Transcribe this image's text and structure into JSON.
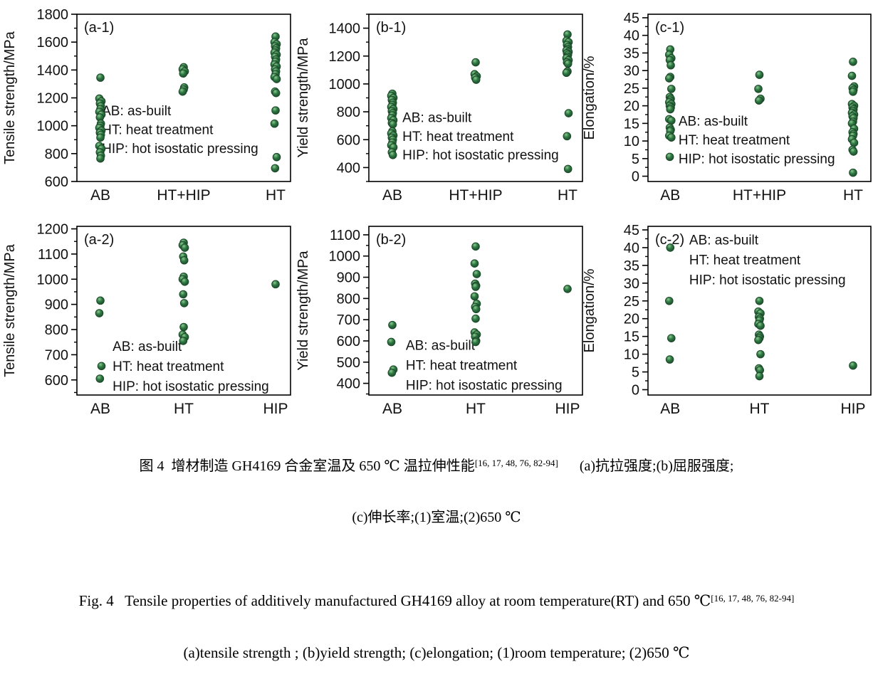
{
  "page": {
    "background": "#ffffff"
  },
  "marker": {
    "fill": "#2f7a44",
    "edge": "#1c492a",
    "highlight": "#8cc98f",
    "radius": 5.3
  },
  "axis": {
    "color": "#000000",
    "text_color": "#111111"
  },
  "chart_data": [
    {
      "id": "a-1",
      "type": "scatter",
      "panel_label": "(a-1)",
      "ylabel": "Tensile strength/MPa",
      "ylim": [
        600,
        1800
      ],
      "yticks": [
        600,
        800,
        1000,
        1200,
        1400,
        1600,
        1800
      ],
      "yminor": 100,
      "grid": false,
      "categories": [
        "AB",
        "HT+HIP",
        "HT"
      ],
      "cat_pos": [
        0.11,
        0.5,
        0.93
      ],
      "series": [
        {
          "name": "AB",
          "values": [
            1345,
            1195,
            1175,
            1160,
            1140,
            1120,
            1100,
            1080,
            1060,
            1015,
            1000,
            985,
            965,
            950,
            935,
            915,
            855,
            835,
            810,
            785,
            765
          ]
        },
        {
          "name": "HT+HIP",
          "values": [
            1420,
            1405,
            1390,
            1375,
            1275,
            1260,
            1245
          ]
        },
        {
          "name": "HT",
          "values": [
            1640,
            1600,
            1585,
            1570,
            1555,
            1540,
            1525,
            1510,
            1495,
            1475,
            1460,
            1440,
            1425,
            1405,
            1390,
            1370,
            1350,
            1335,
            1245,
            1235,
            1110,
            1015,
            775,
            695
          ]
        }
      ],
      "legend": {
        "lines": [
          "AB: as-built",
          "HT: heat treatment",
          "HIP: hot isostatic pressing"
        ],
        "x": 0.117,
        "y": 0.605,
        "dy": 0.112
      }
    },
    {
      "id": "b-1",
      "type": "scatter",
      "panel_label": "(b-1)",
      "ylabel": "Yield strength/MPa",
      "ylim": [
        300,
        1500
      ],
      "yticks": [
        400,
        600,
        800,
        1000,
        1200,
        1400
      ],
      "yminor": 100,
      "grid": false,
      "categories": [
        "AB",
        "HT+HIP",
        "HT"
      ],
      "cat_pos": [
        0.11,
        0.5,
        0.93
      ],
      "series": [
        {
          "name": "AB",
          "values": [
            930,
            915,
            900,
            885,
            865,
            850,
            835,
            820,
            805,
            790,
            775,
            755,
            740,
            720,
            710,
            660,
            645,
            630,
            615,
            600,
            580,
            560,
            545,
            510,
            490
          ]
        },
        {
          "name": "HT+HIP",
          "values": [
            1155,
            1070,
            1055,
            1045,
            1030
          ]
        },
        {
          "name": "HT",
          "values": [
            1355,
            1310,
            1300,
            1280,
            1265,
            1250,
            1240,
            1230,
            1220,
            1210,
            1195,
            1185,
            1170,
            1155,
            1145,
            1090,
            1080,
            790,
            625,
            390
          ]
        }
      ],
      "legend": {
        "lines": [
          "AB: as-built",
          "HT: heat treatment",
          "HIP: hot isostatic pressing"
        ],
        "x": 0.157,
        "y": 0.645,
        "dy": 0.112
      }
    },
    {
      "id": "c-1",
      "type": "scatter",
      "panel_label": "(c-1)",
      "ylabel": "Elongation/%",
      "ylim": [
        -1.5,
        46
      ],
      "yticks": [
        0,
        5,
        10,
        15,
        20,
        25,
        30,
        35,
        40,
        45
      ],
      "yminor": 2.5,
      "grid": false,
      "categories": [
        "AB",
        "HT+HIP",
        "HT"
      ],
      "cat_pos": [
        0.1,
        0.5,
        0.92
      ],
      "series": [
        {
          "name": "AB",
          "values": [
            36,
            34.5,
            33.5,
            33,
            31.5,
            28.2,
            27.8,
            24.8,
            22.5,
            22,
            21.5,
            21,
            20.5,
            20,
            19.5,
            19,
            16.2,
            15.8,
            13.8,
            13.2,
            12.8,
            11.5,
            11,
            5.5
          ]
        },
        {
          "name": "HT+HIP",
          "values": [
            28.8,
            24.8,
            22,
            21.5
          ]
        },
        {
          "name": "HT",
          "values": [
            32.5,
            28.5,
            25.5,
            25,
            24.5,
            24,
            20.5,
            20,
            19.5,
            19,
            18.5,
            18,
            17.5,
            17,
            16.5,
            15.5,
            15,
            13.5,
            12.5,
            12,
            11.5,
            10.5,
            9.5,
            7.5,
            7,
            1
          ]
        }
      ],
      "legend": {
        "lines": [
          "AB: as-built",
          "HT: heat treatment",
          "HIP: hot isostatic pressing"
        ],
        "x": 0.137,
        "y": 0.667,
        "dy": 0.112
      }
    },
    {
      "id": "a-2",
      "type": "scatter",
      "panel_label": "(a-2)",
      "ylabel": "Tensile strength/MPa",
      "ylim": [
        540,
        1210
      ],
      "yticks": [
        600,
        700,
        800,
        900,
        1000,
        1100,
        1200
      ],
      "yminor": 50,
      "grid": false,
      "categories": [
        "AB",
        "HT",
        "HIP"
      ],
      "cat_pos": [
        0.11,
        0.5,
        0.93
      ],
      "series": [
        {
          "name": "AB",
          "values": [
            915,
            865,
            655,
            605
          ]
        },
        {
          "name": "HT",
          "values": [
            1145,
            1135,
            1125,
            1090,
            1075,
            1010,
            1000,
            990,
            940,
            905,
            810,
            780,
            770,
            755
          ]
        },
        {
          "name": "HIP",
          "values": [
            980
          ]
        }
      ],
      "legend": {
        "lines": [
          "AB: as-built",
          "HT: heat treatment",
          "HIP: hot isostatic pressing"
        ],
        "x": 0.167,
        "y": 0.738,
        "dy": 0.118
      }
    },
    {
      "id": "b-2",
      "type": "scatter",
      "panel_label": "(b-2)",
      "ylabel": "Yield strength/MPa",
      "ylim": [
        345,
        1140
      ],
      "yticks": [
        400,
        500,
        600,
        700,
        800,
        900,
        1000,
        1100
      ],
      "yminor": 50,
      "grid": false,
      "categories": [
        "AB",
        "HT",
        "HIP"
      ],
      "cat_pos": [
        0.11,
        0.5,
        0.93
      ],
      "series": [
        {
          "name": "AB",
          "values": [
            675,
            595,
            465,
            450
          ]
        },
        {
          "name": "HT",
          "values": [
            1045,
            965,
            915,
            870,
            860,
            855,
            810,
            775,
            760,
            750,
            705,
            640,
            630,
            620,
            600,
            595
          ]
        },
        {
          "name": "HIP",
          "values": [
            845
          ]
        }
      ],
      "legend": {
        "lines": [
          "AB: as-built",
          "HT: heat treatment",
          "HIP: hot isostatic pressing"
        ],
        "x": 0.173,
        "y": 0.733,
        "dy": 0.118
      }
    },
    {
      "id": "c-2",
      "type": "scatter",
      "panel_label": "(c-2)",
      "ylabel": "Elongation/%",
      "ylim": [
        -1.5,
        46
      ],
      "yticks": [
        0,
        5,
        10,
        15,
        20,
        25,
        30,
        35,
        40,
        45
      ],
      "yminor": 2.5,
      "grid": false,
      "categories": [
        "AB",
        "HT",
        "HIP"
      ],
      "cat_pos": [
        0.1,
        0.5,
        0.92
      ],
      "series": [
        {
          "name": "AB",
          "values": [
            40,
            25,
            14.5,
            8.5
          ]
        },
        {
          "name": "HT",
          "values": [
            25,
            22,
            21.5,
            20.5,
            20,
            19.5,
            18.5,
            18,
            15.5,
            15,
            14.5,
            14,
            10,
            6,
            5.5,
            3.8
          ]
        },
        {
          "name": "HIP",
          "values": [
            6.8
          ]
        }
      ],
      "legend": {
        "lines": [
          "AB: as-built",
          "HT: heat treatment",
          "HIP: hot isostatic pressing"
        ],
        "x": 0.185,
        "y": 0.107,
        "dy": 0.118
      }
    }
  ],
  "captions": {
    "zh_line1": "图 4  增材制造 GH4169 合金室温及 650 ℃ 温拉伸性能",
    "zh_sup": "[16, 17, 48, 76, 82-94]",
    "zh_line1_tail": "(a)抗拉强度;(b)屈服强度;",
    "zh_line2": "(c)伸长率;(1)室温;(2)650 ℃",
    "en_line1": "Fig. 4   Tensile properties of additively manufactured GH4169 alloy at room temperature(RT) and 650 ℃",
    "en_sup": "[16, 17, 48, 76, 82-94]",
    "en_line2": "(a)tensile strength ; (b)yield strength; (c)elongation; (1)room temperature; (2)650 ℃"
  }
}
